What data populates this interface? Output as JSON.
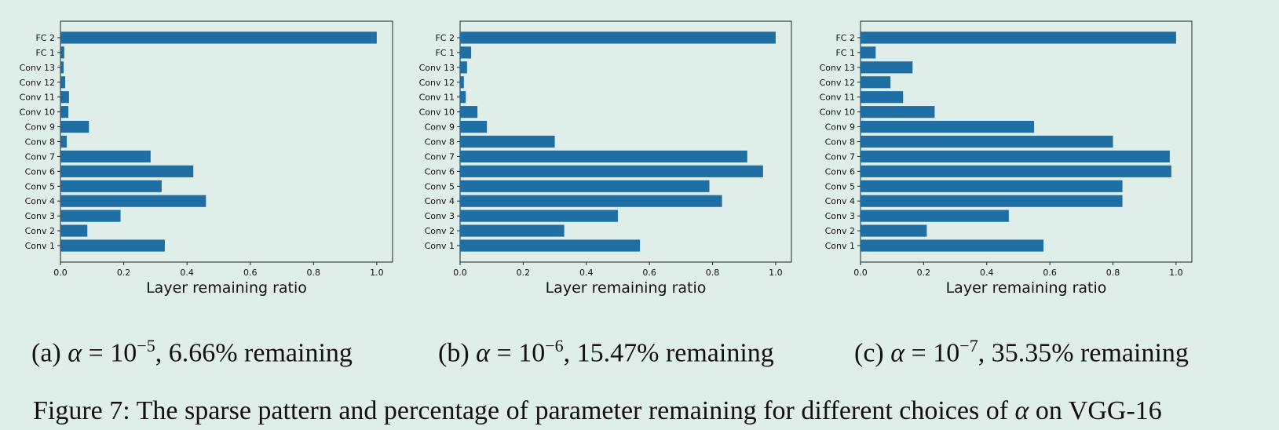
{
  "chart_data": [
    {
      "type": "bar",
      "orientation": "horizontal",
      "categories": [
        "Conv 1",
        "Conv 2",
        "Conv 3",
        "Conv 4",
        "Conv 5",
        "Conv 6",
        "Conv 7",
        "Conv 8",
        "Conv 9",
        "Conv 10",
        "Conv 11",
        "Conv 12",
        "Conv 13",
        "FC 1",
        "FC 2"
      ],
      "values": [
        0.33,
        0.085,
        0.19,
        0.46,
        0.32,
        0.42,
        0.285,
        0.02,
        0.09,
        0.025,
        0.027,
        0.015,
        0.01,
        0.012,
        1.0
      ],
      "xlabel": "Layer remaining ratio",
      "xlim": [
        0,
        1.05
      ],
      "xticks": [
        "0.0",
        "0.2",
        "0.4",
        "0.6",
        "0.8",
        "1.0"
      ],
      "caption_prefix": "(a) ",
      "alpha_symbol": "α",
      "equals": " = 10",
      "exponent": "−5",
      "caption_suffix": ", 6.66% remaining"
    },
    {
      "type": "bar",
      "orientation": "horizontal",
      "categories": [
        "Conv 1",
        "Conv 2",
        "Conv 3",
        "Conv 4",
        "Conv 5",
        "Conv 6",
        "Conv 7",
        "Conv 8",
        "Conv 9",
        "Conv 10",
        "Conv 11",
        "Conv 12",
        "Conv 13",
        "FC 1",
        "FC 2"
      ],
      "values": [
        0.57,
        0.33,
        0.5,
        0.83,
        0.79,
        0.96,
        0.91,
        0.3,
        0.085,
        0.055,
        0.018,
        0.012,
        0.022,
        0.035,
        1.0
      ],
      "xlabel": "Layer remaining ratio",
      "xlim": [
        0,
        1.05
      ],
      "xticks": [
        "0.0",
        "0.2",
        "0.4",
        "0.6",
        "0.8",
        "1.0"
      ],
      "caption_prefix": "(b) ",
      "alpha_symbol": "α",
      "equals": " = 10",
      "exponent": "−6",
      "caption_suffix": ", 15.47% remaining"
    },
    {
      "type": "bar",
      "orientation": "horizontal",
      "categories": [
        "Conv 1",
        "Conv 2",
        "Conv 3",
        "Conv 4",
        "Conv 5",
        "Conv 6",
        "Conv 7",
        "Conv 8",
        "Conv 9",
        "Conv 10",
        "Conv 11",
        "Conv 12",
        "Conv 13",
        "FC 1",
        "FC 2"
      ],
      "values": [
        0.58,
        0.21,
        0.47,
        0.83,
        0.83,
        0.985,
        0.98,
        0.8,
        0.55,
        0.235,
        0.135,
        0.095,
        0.165,
        0.048,
        1.0
      ],
      "xlabel": "Layer remaining ratio",
      "xlim": [
        0,
        1.05
      ],
      "xticks": [
        "0.0",
        "0.2",
        "0.4",
        "0.6",
        "0.8",
        "1.0"
      ],
      "caption_prefix": "(c) ",
      "alpha_symbol": "α",
      "equals": " = 10",
      "exponent": "−7",
      "caption_suffix": ", 35.35% remaining"
    }
  ],
  "colors": {
    "bar": "#1f6fa5",
    "axis": "#222222",
    "background": "#dfeee8"
  },
  "figure_caption": {
    "text_before": "Figure 7: The sparse pattern and percentage of parameter remaining for different choices of ",
    "alpha_symbol": "α",
    "text_after": " on VGG-16"
  }
}
